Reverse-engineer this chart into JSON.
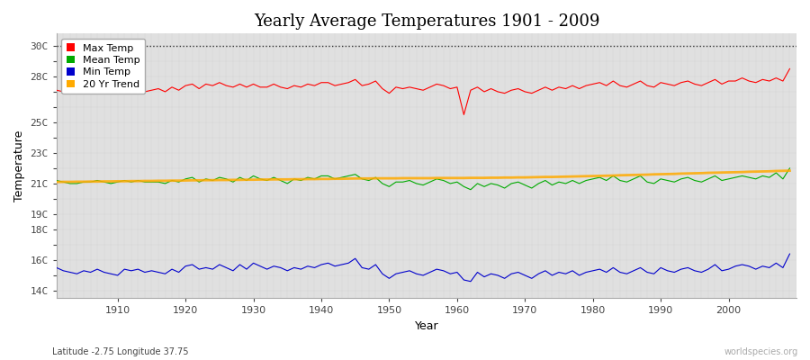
{
  "title": "Yearly Average Temperatures 1901 - 2009",
  "xlabel": "Year",
  "ylabel": "Temperature",
  "years": [
    1901,
    1902,
    1903,
    1904,
    1905,
    1906,
    1907,
    1908,
    1909,
    1910,
    1911,
    1912,
    1913,
    1914,
    1915,
    1916,
    1917,
    1918,
    1919,
    1920,
    1921,
    1922,
    1923,
    1924,
    1925,
    1926,
    1927,
    1928,
    1929,
    1930,
    1931,
    1932,
    1933,
    1934,
    1935,
    1936,
    1937,
    1938,
    1939,
    1940,
    1941,
    1942,
    1943,
    1944,
    1945,
    1946,
    1947,
    1948,
    1949,
    1950,
    1951,
    1952,
    1953,
    1954,
    1955,
    1956,
    1957,
    1958,
    1959,
    1960,
    1961,
    1962,
    1963,
    1964,
    1965,
    1966,
    1967,
    1968,
    1969,
    1970,
    1971,
    1972,
    1973,
    1974,
    1975,
    1976,
    1977,
    1978,
    1979,
    1980,
    1981,
    1982,
    1983,
    1984,
    1985,
    1986,
    1987,
    1988,
    1989,
    1990,
    1991,
    1992,
    1993,
    1994,
    1995,
    1996,
    1997,
    1998,
    1999,
    2000,
    2001,
    2002,
    2003,
    2004,
    2005,
    2006,
    2007,
    2008,
    2009
  ],
  "max_temp": [
    27.1,
    27.0,
    27.2,
    26.9,
    27.0,
    27.1,
    27.3,
    27.1,
    27.0,
    26.9,
    27.2,
    27.1,
    27.3,
    27.0,
    27.1,
    27.2,
    27.0,
    27.3,
    27.1,
    27.4,
    27.5,
    27.2,
    27.5,
    27.4,
    27.6,
    27.4,
    27.3,
    27.5,
    27.3,
    27.5,
    27.3,
    27.3,
    27.5,
    27.3,
    27.2,
    27.4,
    27.3,
    27.5,
    27.4,
    27.6,
    27.6,
    27.4,
    27.5,
    27.6,
    27.8,
    27.4,
    27.5,
    27.7,
    27.2,
    26.9,
    27.3,
    27.2,
    27.3,
    27.2,
    27.1,
    27.3,
    27.5,
    27.4,
    27.2,
    27.3,
    25.5,
    27.1,
    27.3,
    27.0,
    27.2,
    27.0,
    26.9,
    27.1,
    27.2,
    27.0,
    26.9,
    27.1,
    27.3,
    27.1,
    27.3,
    27.2,
    27.4,
    27.2,
    27.4,
    27.5,
    27.6,
    27.4,
    27.7,
    27.4,
    27.3,
    27.5,
    27.7,
    27.4,
    27.3,
    27.6,
    27.5,
    27.4,
    27.6,
    27.7,
    27.5,
    27.4,
    27.6,
    27.8,
    27.5,
    27.7,
    27.7,
    27.9,
    27.7,
    27.6,
    27.8,
    27.7,
    27.9,
    27.7,
    28.5
  ],
  "mean_temp": [
    21.2,
    21.1,
    21.0,
    21.0,
    21.1,
    21.1,
    21.2,
    21.1,
    21.0,
    21.1,
    21.2,
    21.1,
    21.2,
    21.1,
    21.1,
    21.1,
    21.0,
    21.2,
    21.1,
    21.3,
    21.4,
    21.1,
    21.3,
    21.2,
    21.4,
    21.3,
    21.1,
    21.4,
    21.2,
    21.5,
    21.3,
    21.2,
    21.4,
    21.2,
    21.0,
    21.3,
    21.2,
    21.4,
    21.3,
    21.5,
    21.5,
    21.3,
    21.4,
    21.5,
    21.6,
    21.3,
    21.2,
    21.4,
    21.0,
    20.8,
    21.1,
    21.1,
    21.2,
    21.0,
    20.9,
    21.1,
    21.3,
    21.2,
    21.0,
    21.1,
    20.8,
    20.6,
    21.0,
    20.8,
    21.0,
    20.9,
    20.7,
    21.0,
    21.1,
    20.9,
    20.7,
    21.0,
    21.2,
    20.9,
    21.1,
    21.0,
    21.2,
    21.0,
    21.2,
    21.3,
    21.4,
    21.2,
    21.5,
    21.2,
    21.1,
    21.3,
    21.5,
    21.1,
    21.0,
    21.3,
    21.2,
    21.1,
    21.3,
    21.4,
    21.2,
    21.1,
    21.3,
    21.5,
    21.2,
    21.3,
    21.4,
    21.5,
    21.4,
    21.3,
    21.5,
    21.4,
    21.7,
    21.3,
    22.0
  ],
  "min_temp": [
    15.5,
    15.3,
    15.2,
    15.1,
    15.3,
    15.2,
    15.4,
    15.2,
    15.1,
    15.0,
    15.4,
    15.3,
    15.4,
    15.2,
    15.3,
    15.2,
    15.1,
    15.4,
    15.2,
    15.6,
    15.7,
    15.4,
    15.5,
    15.4,
    15.7,
    15.5,
    15.3,
    15.7,
    15.4,
    15.8,
    15.6,
    15.4,
    15.6,
    15.5,
    15.3,
    15.5,
    15.4,
    15.6,
    15.5,
    15.7,
    15.8,
    15.6,
    15.7,
    15.8,
    16.1,
    15.5,
    15.4,
    15.7,
    15.1,
    14.8,
    15.1,
    15.2,
    15.3,
    15.1,
    15.0,
    15.2,
    15.4,
    15.3,
    15.1,
    15.2,
    14.7,
    14.6,
    15.2,
    14.9,
    15.1,
    15.0,
    14.8,
    15.1,
    15.2,
    15.0,
    14.8,
    15.1,
    15.3,
    15.0,
    15.2,
    15.1,
    15.3,
    15.0,
    15.2,
    15.3,
    15.4,
    15.2,
    15.5,
    15.2,
    15.1,
    15.3,
    15.5,
    15.2,
    15.1,
    15.5,
    15.3,
    15.2,
    15.4,
    15.5,
    15.3,
    15.2,
    15.4,
    15.7,
    15.3,
    15.4,
    15.6,
    15.7,
    15.6,
    15.4,
    15.6,
    15.5,
    15.8,
    15.5,
    16.4
  ],
  "trend_mean": [
    21.1,
    21.11,
    21.11,
    21.12,
    21.12,
    21.13,
    21.13,
    21.14,
    21.14,
    21.15,
    21.15,
    21.16,
    21.16,
    21.17,
    21.17,
    21.18,
    21.18,
    21.19,
    21.19,
    21.2,
    21.21,
    21.21,
    21.22,
    21.22,
    21.23,
    21.23,
    21.24,
    21.24,
    21.25,
    21.25,
    21.26,
    21.26,
    21.27,
    21.27,
    21.27,
    21.28,
    21.28,
    21.29,
    21.29,
    21.3,
    21.3,
    21.31,
    21.31,
    21.32,
    21.33,
    21.33,
    21.33,
    21.34,
    21.34,
    21.34,
    21.34,
    21.35,
    21.35,
    21.35,
    21.35,
    21.35,
    21.36,
    21.36,
    21.36,
    21.36,
    21.36,
    21.37,
    21.37,
    21.37,
    21.38,
    21.38,
    21.39,
    21.39,
    21.4,
    21.4,
    21.41,
    21.42,
    21.43,
    21.43,
    21.44,
    21.45,
    21.46,
    21.47,
    21.48,
    21.49,
    21.5,
    21.51,
    21.52,
    21.54,
    21.55,
    21.56,
    21.57,
    21.58,
    21.6,
    21.61,
    21.62,
    21.63,
    21.65,
    21.66,
    21.67,
    21.68,
    21.7,
    21.71,
    21.72,
    21.73,
    21.74,
    21.75,
    21.77,
    21.78,
    21.79,
    21.8,
    21.82,
    21.83,
    21.84
  ],
  "ylim": [
    13.5,
    30.8
  ],
  "xlim": [
    1901,
    2010
  ],
  "xticks": [
    1910,
    1920,
    1930,
    1940,
    1950,
    1960,
    1970,
    1980,
    1990,
    2000
  ],
  "ytick_positions": [
    14,
    15,
    16,
    17,
    18,
    19,
    20,
    21,
    22,
    23,
    24,
    25,
    26,
    27,
    28,
    29,
    30
  ],
  "ytick_labels": [
    "14C",
    "",
    "16C",
    "",
    "18C",
    "19C",
    "",
    "21C",
    "",
    "23C",
    "",
    "25C",
    "",
    "",
    "28C",
    "",
    "30C"
  ],
  "color_max": "#ff0000",
  "color_mean": "#00aa00",
  "color_min": "#0000cc",
  "color_trend": "#ffaa00",
  "bg_color": "#e0e0e0",
  "fig_bg_color": "#ffffff",
  "dotted_line_y": 30,
  "subtitle": "Latitude -2.75 Longitude 37.75",
  "watermark": "worldspecies.org",
  "title_fontsize": 13,
  "axis_label_fontsize": 9,
  "tick_fontsize": 8,
  "legend_fontsize": 8
}
